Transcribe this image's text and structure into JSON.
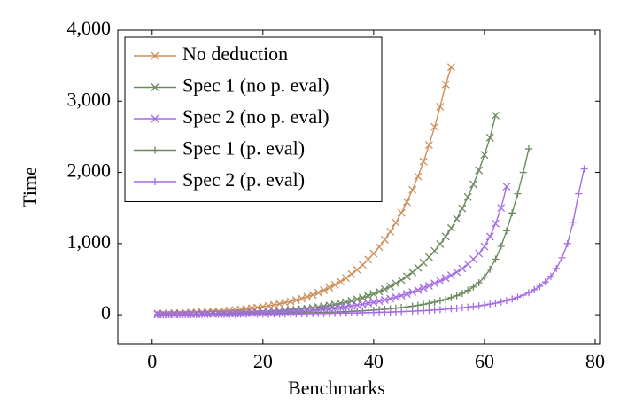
{
  "chart_data": {
    "type": "line",
    "xlabel": "Benchmarks",
    "ylabel": "Time",
    "xlim": [
      -6.2,
      80.8
    ],
    "ylim": [
      -410,
      4000
    ],
    "xticks": [
      0,
      20,
      40,
      60,
      80
    ],
    "yticks": [
      0,
      {
        "value": 1000,
        "label": "1,000"
      },
      {
        "value": 2000,
        "label": "2,000"
      },
      {
        "value": 3000,
        "label": "3,000"
      },
      {
        "value": 4000,
        "label": "4,000"
      }
    ],
    "legend": "upper left",
    "series": [
      {
        "name": "No deduction",
        "color": "#cc8f5a",
        "marker": "x",
        "x": [
          1,
          2,
          3,
          4,
          5,
          6,
          7,
          8,
          9,
          10,
          11,
          12,
          13,
          14,
          15,
          16,
          17,
          18,
          19,
          20,
          21,
          22,
          23,
          24,
          25,
          26,
          27,
          28,
          29,
          30,
          31,
          32,
          33,
          34,
          35,
          36,
          37,
          38,
          39,
          40,
          41,
          42,
          43,
          44,
          45,
          46,
          47,
          48,
          49,
          50,
          51,
          52,
          53,
          54
        ],
        "values": [
          16,
          18,
          20,
          22,
          24,
          27,
          30,
          33,
          36,
          40,
          45,
          49,
          55,
          61,
          67,
          74,
          82,
          91,
          101,
          112,
          124,
          137,
          152,
          168,
          186,
          206,
          228,
          253,
          280,
          310,
          343,
          380,
          421,
          466,
          516,
          572,
          633,
          701,
          776,
          860,
          952,
          1054,
          1167,
          1293,
          1431,
          1585,
          1755,
          1944,
          2153,
          2384,
          2640,
          2923,
          3237,
          3480
        ]
      },
      {
        "name": "Spec 1 (no p. eval)",
        "color": "#6b8a5e",
        "marker": "x",
        "x": [
          1,
          2,
          3,
          4,
          5,
          6,
          7,
          8,
          9,
          10,
          11,
          12,
          13,
          14,
          15,
          16,
          17,
          18,
          19,
          20,
          21,
          22,
          23,
          24,
          25,
          26,
          27,
          28,
          29,
          30,
          31,
          32,
          33,
          34,
          35,
          36,
          37,
          38,
          39,
          40,
          41,
          42,
          43,
          44,
          45,
          46,
          47,
          48,
          49,
          50,
          51,
          52,
          53,
          54,
          55,
          56,
          57,
          58,
          59,
          60,
          61,
          62
        ],
        "values": [
          5,
          6,
          6,
          7,
          8,
          9,
          10,
          11,
          12,
          14,
          15,
          17,
          19,
          21,
          23,
          25,
          28,
          31,
          34,
          38,
          42,
          47,
          52,
          57,
          64,
          70,
          78,
          86,
          95,
          106,
          117,
          129,
          143,
          159,
          176,
          194,
          215,
          238,
          264,
          292,
          324,
          358,
          397,
          439,
          486,
          539,
          596,
          660,
          731,
          810,
          897,
          993,
          1100,
          1218,
          1349,
          1494,
          1654,
          1832,
          2029,
          2247,
          2488,
          2800
        ]
      },
      {
        "name": "Spec 2 (no p. eval)",
        "color": "#a46ce6",
        "marker": "x",
        "x": [
          1,
          2,
          3,
          4,
          5,
          6,
          7,
          8,
          9,
          10,
          11,
          12,
          13,
          14,
          15,
          16,
          17,
          18,
          19,
          20,
          21,
          22,
          23,
          24,
          25,
          26,
          27,
          28,
          29,
          30,
          31,
          32,
          33,
          34,
          35,
          36,
          37,
          38,
          39,
          40,
          41,
          42,
          43,
          44,
          45,
          46,
          47,
          48,
          49,
          50,
          51,
          52,
          53,
          54,
          55,
          56,
          57,
          58,
          59,
          60,
          61,
          62,
          63,
          64
        ],
        "values": [
          4,
          5,
          5,
          6,
          7,
          8,
          9,
          10,
          11,
          12,
          13,
          14,
          15,
          17,
          18,
          20,
          22,
          24,
          27,
          29,
          32,
          35,
          38,
          42,
          46,
          50,
          55,
          60,
          66,
          72,
          79,
          86,
          94,
          103,
          112,
          123,
          134,
          146,
          160,
          174,
          190,
          207,
          226,
          246,
          268,
          292,
          318,
          345,
          375,
          405,
          440,
          475,
          515,
          555,
          600,
          650,
          710,
          780,
          860,
          960,
          1100,
          1280,
          1500,
          1800
        ]
      },
      {
        "name": "Spec 1 (p. eval)",
        "color": "#6b8a5e",
        "marker": "+",
        "x": [
          1,
          2,
          3,
          4,
          5,
          6,
          7,
          8,
          9,
          10,
          11,
          12,
          13,
          14,
          15,
          16,
          17,
          18,
          19,
          20,
          21,
          22,
          23,
          24,
          25,
          26,
          27,
          28,
          29,
          30,
          31,
          32,
          33,
          34,
          35,
          36,
          37,
          38,
          39,
          40,
          41,
          42,
          43,
          44,
          45,
          46,
          47,
          48,
          49,
          50,
          51,
          52,
          53,
          54,
          55,
          56,
          57,
          58,
          59,
          60,
          61,
          62,
          63,
          64,
          65,
          66,
          67,
          68
        ],
        "values": [
          2,
          3,
          3,
          4,
          4,
          5,
          5,
          6,
          6,
          7,
          7,
          8,
          8,
          9,
          10,
          10,
          11,
          12,
          13,
          14,
          15,
          16,
          17,
          18,
          20,
          21,
          23,
          25,
          27,
          29,
          31,
          34,
          37,
          40,
          43,
          47,
          51,
          55,
          60,
          65,
          71,
          77,
          84,
          92,
          100,
          110,
          120,
          132,
          145,
          160,
          176,
          195,
          216,
          240,
          268,
          300,
          340,
          390,
          450,
          530,
          640,
          780,
          960,
          1180,
          1430,
          1700,
          2000,
          2330
        ]
      },
      {
        "name": "Spec 2 (p. eval)",
        "color": "#a46ce6",
        "marker": "+",
        "x": [
          1,
          2,
          3,
          4,
          5,
          6,
          7,
          8,
          9,
          10,
          11,
          12,
          13,
          14,
          15,
          16,
          17,
          18,
          19,
          20,
          21,
          22,
          23,
          24,
          25,
          26,
          27,
          28,
          29,
          30,
          31,
          32,
          33,
          34,
          35,
          36,
          37,
          38,
          39,
          40,
          41,
          42,
          43,
          44,
          45,
          46,
          47,
          48,
          49,
          50,
          51,
          52,
          53,
          54,
          55,
          56,
          57,
          58,
          59,
          60,
          61,
          62,
          63,
          64,
          65,
          66,
          67,
          68,
          69,
          70,
          71,
          72,
          73,
          74,
          75,
          76,
          77,
          78
        ],
        "values": [
          2,
          2,
          2,
          3,
          3,
          3,
          4,
          4,
          4,
          5,
          5,
          5,
          6,
          6,
          6,
          7,
          7,
          8,
          8,
          9,
          9,
          10,
          10,
          11,
          12,
          12,
          13,
          14,
          15,
          16,
          17,
          18,
          20,
          21,
          22,
          24,
          25,
          27,
          29,
          31,
          33,
          35,
          37,
          40,
          43,
          46,
          49,
          53,
          57,
          61,
          66,
          71,
          77,
          83,
          90,
          97,
          105,
          114,
          124,
          135,
          148,
          163,
          180,
          198,
          220,
          245,
          275,
          310,
          350,
          400,
          460,
          540,
          650,
          800,
          1000,
          1300,
          1700,
          2050
        ]
      }
    ]
  }
}
